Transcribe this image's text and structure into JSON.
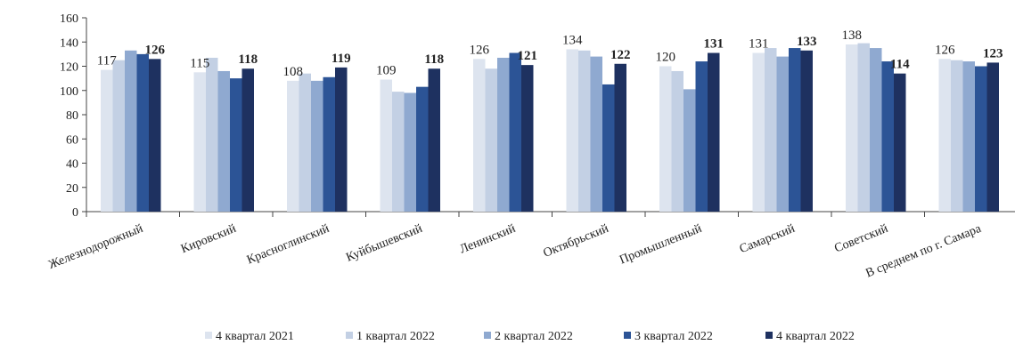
{
  "chart_data": {
    "type": "bar",
    "title": "",
    "xlabel": "",
    "ylabel": "",
    "ylim": [
      0,
      160
    ],
    "y_ticks": [
      0,
      20,
      40,
      60,
      80,
      100,
      120,
      140,
      160
    ],
    "grid": false,
    "legend_position": "bottom",
    "categories": [
      "Железнодорожный",
      "Кировский",
      "Красноглинский",
      "Куйбышевский",
      "Ленинский",
      "Октябрьский",
      "Промышленный",
      "Самарский",
      "Советский",
      "В среднем по г. Самара"
    ],
    "series": [
      {
        "name": "4 квартал 2021",
        "color": "#dde4ef",
        "values": [
          117,
          115,
          108,
          109,
          126,
          134,
          120,
          131,
          138,
          126
        ]
      },
      {
        "name": "1 квартал 2022",
        "color": "#c3d0e4",
        "values": [
          125,
          127,
          114,
          99,
          118,
          133,
          116,
          135,
          139,
          125
        ]
      },
      {
        "name": "2 квартал 2022",
        "color": "#8fa9d0",
        "values": [
          133,
          116,
          108,
          98,
          127,
          128,
          101,
          128,
          135,
          124
        ]
      },
      {
        "name": "3 квартал 2022",
        "color": "#2c5496",
        "values": [
          130,
          110,
          111,
          103,
          131,
          105,
          124,
          135,
          124,
          120
        ]
      },
      {
        "name": "4 квартал 2022",
        "color": "#1e3160",
        "values": [
          126,
          118,
          119,
          118,
          121,
          122,
          131,
          133,
          114,
          123
        ]
      }
    ],
    "data_labels": [
      {
        "category": 0,
        "series": 0,
        "text": "117",
        "bold": false
      },
      {
        "category": 0,
        "series": 4,
        "text": "126",
        "bold": true
      },
      {
        "category": 1,
        "series": 0,
        "text": "115",
        "bold": false
      },
      {
        "category": 1,
        "series": 4,
        "text": "118",
        "bold": true
      },
      {
        "category": 2,
        "series": 0,
        "text": "108",
        "bold": false
      },
      {
        "category": 2,
        "series": 4,
        "text": "119",
        "bold": true
      },
      {
        "category": 3,
        "series": 0,
        "text": "109",
        "bold": false
      },
      {
        "category": 3,
        "series": 4,
        "text": "118",
        "bold": true
      },
      {
        "category": 4,
        "series": 0,
        "text": "126",
        "bold": false
      },
      {
        "category": 4,
        "series": 4,
        "text": "121",
        "bold": true
      },
      {
        "category": 5,
        "series": 0,
        "text": "134",
        "bold": false
      },
      {
        "category": 5,
        "series": 4,
        "text": "122",
        "bold": true
      },
      {
        "category": 6,
        "series": 0,
        "text": "120",
        "bold": false
      },
      {
        "category": 6,
        "series": 4,
        "text": "131",
        "bold": true
      },
      {
        "category": 7,
        "series": 0,
        "text": "131",
        "bold": false
      },
      {
        "category": 7,
        "series": 4,
        "text": "133",
        "bold": true
      },
      {
        "category": 8,
        "series": 0,
        "text": "138",
        "bold": false
      },
      {
        "category": 8,
        "series": 4,
        "text": "114",
        "bold": true
      },
      {
        "category": 9,
        "series": 0,
        "text": "126",
        "bold": false
      },
      {
        "category": 9,
        "series": 4,
        "text": "123",
        "bold": true
      }
    ]
  }
}
